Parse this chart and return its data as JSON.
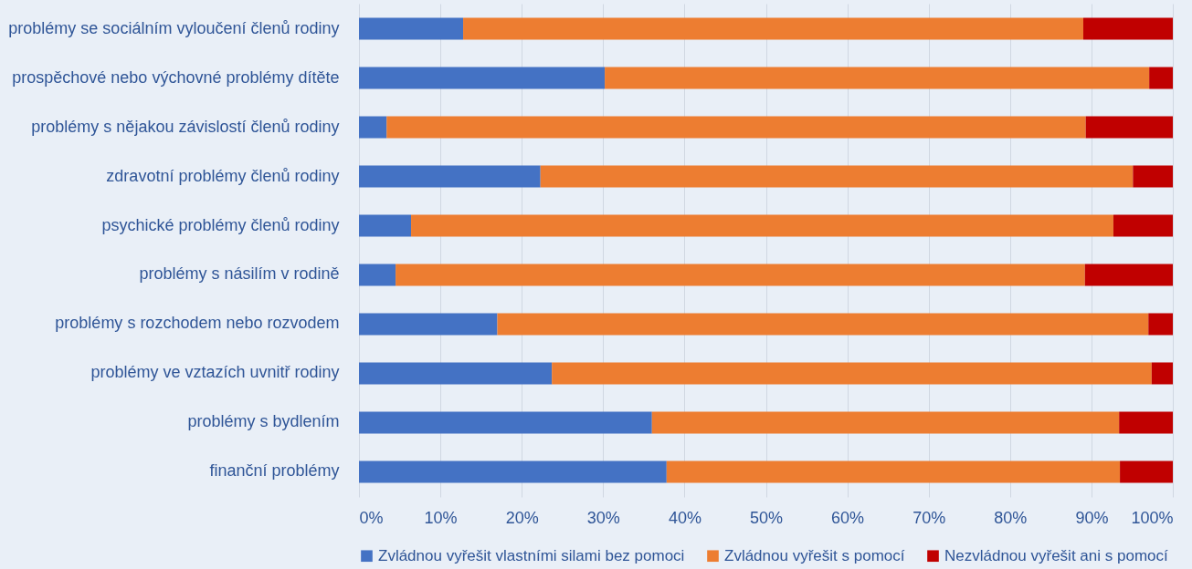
{
  "chart_data": {
    "type": "bar",
    "orientation": "horizontal",
    "stacked": true,
    "categories": [
      "problémy se sociálním vyloučení členů rodiny",
      "prospěchové nebo výchovné problémy dítěte",
      "problémy s nějakou závislostí členů rodiny",
      "zdravotní problémy členů rodiny",
      "psychické problémy členů rodiny",
      "problémy s násilím v rodině",
      "problémy s rozchodem nebo rozvodem",
      "problémy ve vztazích uvnitř rodiny",
      "problémy s bydlením",
      "finanční problémy"
    ],
    "series": [
      {
        "name": "Zvládnou vyřešit vlastními silami bez pomoci",
        "color": "#4472c4",
        "values": [
          12.8,
          30.2,
          3.4,
          22.3,
          6.4,
          4.5,
          17.0,
          23.7,
          36.0,
          37.8
        ]
      },
      {
        "name": "Zvládnou vyřešit s pomocí",
        "color": "#ed7d31",
        "values": [
          76.2,
          66.9,
          85.9,
          72.8,
          86.3,
          84.7,
          80.0,
          73.7,
          57.4,
          55.7
        ]
      },
      {
        "name": "Nezvládnou vyřešit ani s pomocí",
        "color": "#c00000",
        "values": [
          11.0,
          2.9,
          10.7,
          4.9,
          7.3,
          10.8,
          3.0,
          2.6,
          6.6,
          6.5
        ]
      }
    ],
    "xlim": [
      0,
      100
    ],
    "xticks": [
      {
        "value": 0,
        "label": "0%"
      },
      {
        "value": 10,
        "label": "10%"
      },
      {
        "value": 20,
        "label": "20%"
      },
      {
        "value": 30,
        "label": "30%"
      },
      {
        "value": 40,
        "label": "40%"
      },
      {
        "value": 50,
        "label": "50%"
      },
      {
        "value": 60,
        "label": "60%"
      },
      {
        "value": 70,
        "label": "70%"
      },
      {
        "value": 80,
        "label": "80%"
      },
      {
        "value": 90,
        "label": "90%"
      },
      {
        "value": 100,
        "label": "100%"
      }
    ],
    "grid": "x",
    "legend": "bottom"
  }
}
